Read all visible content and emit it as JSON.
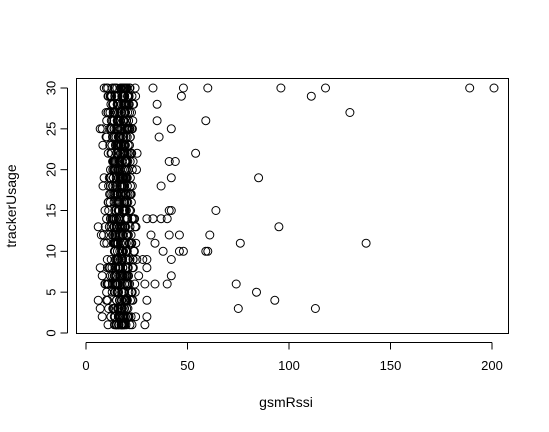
{
  "chart_data": {
    "type": "scatter",
    "title": "",
    "xlabel": "gsmRssi",
    "ylabel": "trackerUsage",
    "xlim": [
      0,
      205
    ],
    "ylim": [
      0,
      30
    ],
    "x_ticks": [
      "0",
      "50",
      "100",
      "150",
      "200"
    ],
    "y_ticks": [
      "0",
      "5",
      "10",
      "15",
      "20",
      "25",
      "30"
    ],
    "grid": false,
    "marker": "open-circle",
    "point_color": "#000000",
    "dense_band": {
      "x_range": [
        7,
        27
      ],
      "y_range": [
        1,
        30
      ]
    },
    "points": [
      [
        189,
        30
      ],
      [
        201,
        30
      ],
      [
        118,
        30
      ],
      [
        96,
        30
      ],
      [
        111,
        29
      ],
      [
        130,
        27
      ],
      [
        60,
        30
      ],
      [
        48,
        30
      ],
      [
        47,
        29
      ],
      [
        59,
        26
      ],
      [
        42,
        25
      ],
      [
        54,
        22
      ],
      [
        44,
        21
      ],
      [
        41,
        21
      ],
      [
        85,
        19
      ],
      [
        42,
        19
      ],
      [
        37,
        18
      ],
      [
        36,
        24
      ],
      [
        35,
        26
      ],
      [
        35,
        28
      ],
      [
        33,
        30
      ],
      [
        64,
        15
      ],
      [
        41,
        15
      ],
      [
        40,
        14
      ],
      [
        42,
        15
      ],
      [
        37,
        14
      ],
      [
        33,
        14
      ],
      [
        30,
        14
      ],
      [
        61,
        12
      ],
      [
        46,
        12
      ],
      [
        41,
        12
      ],
      [
        95,
        13
      ],
      [
        138,
        11
      ],
      [
        76,
        11
      ],
      [
        34,
        11
      ],
      [
        60,
        10
      ],
      [
        59,
        10
      ],
      [
        48,
        10
      ],
      [
        46,
        10
      ],
      [
        42,
        9
      ],
      [
        38,
        10
      ],
      [
        32,
        12
      ],
      [
        30,
        9
      ],
      [
        30,
        8
      ],
      [
        28,
        9
      ],
      [
        42,
        7
      ],
      [
        40,
        6
      ],
      [
        34,
        6
      ],
      [
        29,
        6
      ],
      [
        74,
        6
      ],
      [
        84,
        5
      ],
      [
        93,
        4
      ],
      [
        75,
        3
      ],
      [
        113,
        3
      ],
      [
        30,
        4
      ],
      [
        30,
        2
      ],
      [
        29,
        1
      ],
      [
        6,
        13
      ],
      [
        7,
        25
      ],
      [
        8,
        25
      ],
      [
        6,
        4
      ],
      [
        7,
        8
      ],
      [
        8,
        7
      ],
      [
        7,
        3
      ],
      [
        8,
        2
      ]
    ]
  }
}
